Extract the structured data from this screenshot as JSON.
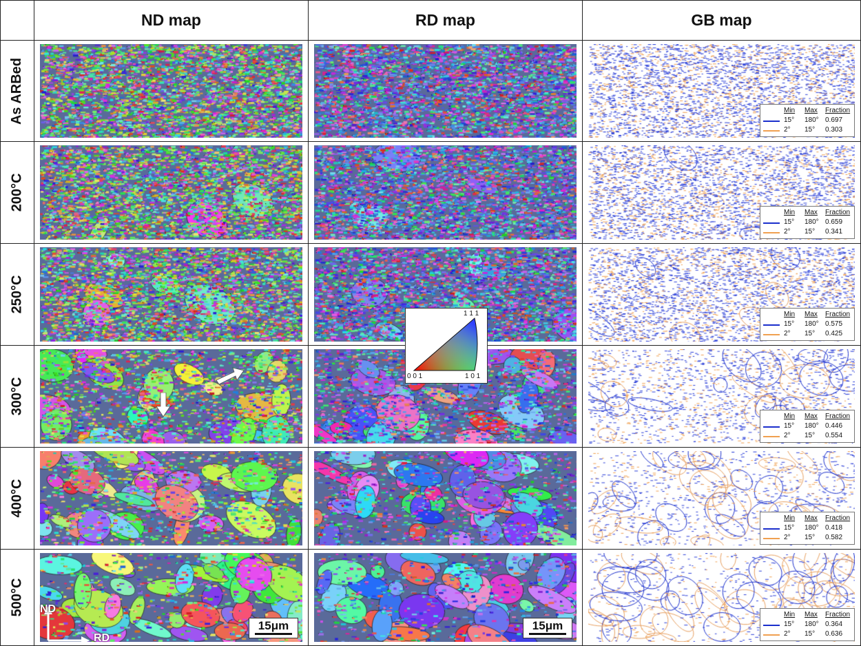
{
  "headers": {
    "nd": "ND map",
    "rd": "RD map",
    "gb": "GB map"
  },
  "rows": [
    {
      "label": "As ARBed",
      "fraction": [
        "0.697",
        "0.303"
      ],
      "coarse": 0.0
    },
    {
      "label": "200°C",
      "fraction": [
        "0.659",
        "0.341"
      ],
      "coarse": 0.05
    },
    {
      "label": "250°C",
      "fraction": [
        "0.575",
        "0.425"
      ],
      "coarse": 0.1
    },
    {
      "label": "300°C",
      "fraction": [
        "0.446",
        "0.554"
      ],
      "coarse": 0.45
    },
    {
      "label": "400°C",
      "fraction": [
        "0.418",
        "0.582"
      ],
      "coarse": 0.65
    },
    {
      "label": "500°C",
      "fraction": [
        "0.364",
        "0.636"
      ],
      "coarse": 0.8
    }
  ],
  "legend": {
    "col_min": "Min",
    "col_max": "Max",
    "col_fraction": "Fraction",
    "high_min": "15°",
    "high_max": "180°",
    "low_min": "2°",
    "low_max": "15°",
    "high_color": "#1a2ecc",
    "low_color": "#f0a050"
  },
  "scale": "15μm",
  "ipf": {
    "top": "1 1 1",
    "left": "0 0 1",
    "right": "1 0 1"
  },
  "axes": {
    "nd": "ND",
    "rd": "RD"
  }
}
